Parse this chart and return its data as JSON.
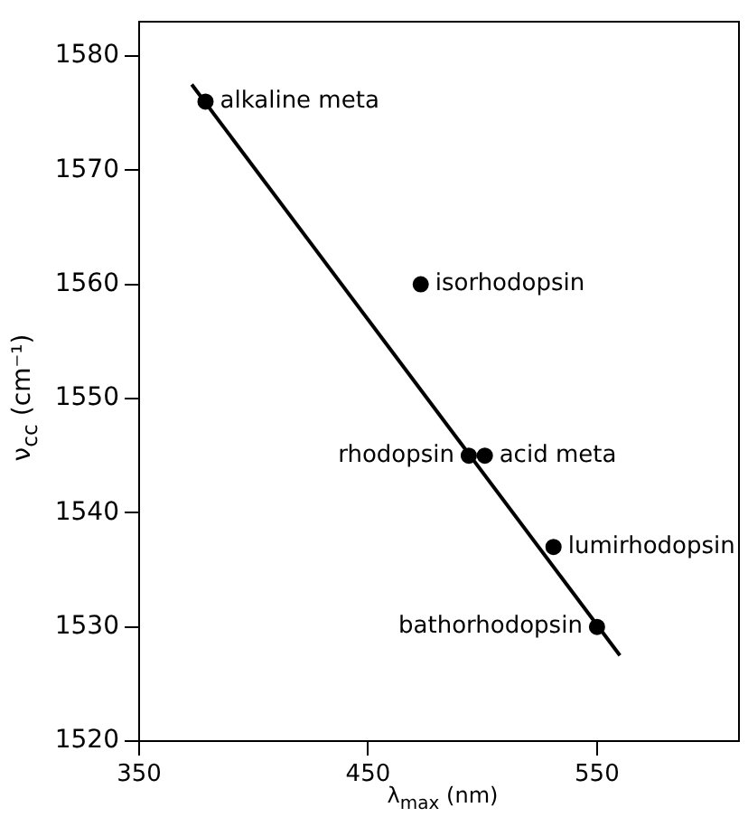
{
  "chart_data": {
    "type": "scatter",
    "xlabel": "λ$_{max}$ (nm)",
    "ylabel": "ν$_{cc}$ (cm⁻¹)",
    "xlim": [
      350,
      612
    ],
    "xticks": [
      350,
      450,
      550
    ],
    "ylim": [
      1520,
      1583
    ],
    "yticks": [
      1520,
      1530,
      1540,
      1550,
      1560,
      1570,
      1580
    ],
    "grid": false,
    "legend": false,
    "series": [
      {
        "marker": "circle",
        "color": "#000000",
        "x": [
          379,
          473,
          494,
          501,
          531,
          550
        ],
        "values": [
          1576,
          1560,
          1545,
          1545,
          1537,
          1530
        ]
      },
      {
        "type": "line",
        "marker": "none",
        "color": "#000000",
        "x": [
          373,
          560
        ],
        "values": [
          1577.5,
          1527.5
        ]
      }
    ],
    "annotations": [
      {
        "text": "alkaline meta",
        "x": 379,
        "y": 1576
      },
      {
        "text": "isorhodopsin",
        "x": 473,
        "y": 1560
      },
      {
        "text": "rhodopsin",
        "x": 494,
        "y": 1545
      },
      {
        "text": "acid meta",
        "x": 501,
        "y": 1545
      },
      {
        "text": "lumirhodopsin",
        "x": 531,
        "y": 1537
      },
      {
        "text": "bathorhodopsin",
        "x": 550,
        "y": 1530
      }
    ]
  }
}
